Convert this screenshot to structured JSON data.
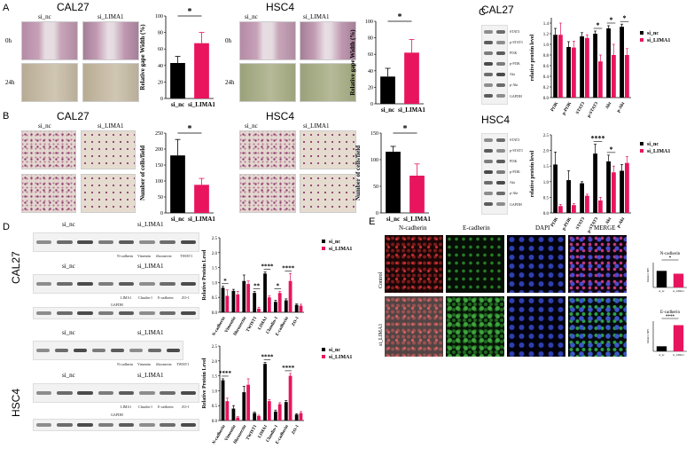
{
  "colors": {
    "si_nc": "#000000",
    "si_LIMA1": "#e8155e"
  },
  "panels": {
    "A": "A",
    "B": "B",
    "C": "C",
    "D": "D",
    "E": "E"
  },
  "panelA": {
    "left_title": "CAL27",
    "right_title": "HSC4",
    "col_nc": "si_nc",
    "col_si": "si_LIMA1",
    "row_0h": "0h",
    "row_24h": "24h"
  },
  "panelB": {
    "left_title": "CAL27",
    "right_title": "HSC4",
    "col_nc": "si_nc",
    "col_si": "si_LIMA1"
  },
  "panelC": {
    "top_title": "CAL27",
    "bottom_title": "HSC4",
    "blot_labels": [
      "STAT3",
      "p-STAT3",
      "PI3K",
      "p-PI3K",
      "Akt",
      "p-Akt",
      "GAPDH"
    ],
    "lane_labels": [
      "si_nc",
      "si_LIMA1"
    ]
  },
  "panelD": {
    "top_title": "CAL27",
    "bottom_title": "HSC4",
    "group_nc": "si_nc",
    "group_si": "si_LIMA1",
    "row1_labels": [
      "N-cadherin",
      "Vimentin",
      "fibronectin",
      "TWIST1"
    ],
    "row2_labels": [
      "LIMA1",
      "Claudin-1",
      "E-cadherin",
      "ZO-1"
    ],
    "loading": "GAPDH"
  },
  "panelE": {
    "cols": [
      "N-cadherin",
      "E-cadherin",
      "DAPI",
      "MERGE"
    ],
    "rows": [
      "Control",
      "si_LIMA1"
    ],
    "mini_top_title": "N-cadherin",
    "mini_bottom_title": "E-cadherin",
    "mini_ylabel": "Relative MFI",
    "mini_top_sig": "*",
    "mini_bottom_sig": "****",
    "mini_cats": [
      "si_nc",
      "si_LIMA1"
    ]
  },
  "chart_data": [
    {
      "id": "A1",
      "type": "bar",
      "categories": [
        "si_nc",
        "si_LIMA1"
      ],
      "values": [
        43,
        67
      ],
      "errors": [
        8,
        13
      ],
      "ylabel": "Relative gape Width (%)",
      "ylim": [
        0,
        100
      ],
      "yticks": [
        0,
        20,
        40,
        60,
        80,
        100
      ],
      "significance": "*"
    },
    {
      "id": "A2",
      "type": "bar",
      "categories": [
        "si_nc",
        "si_LIMA1"
      ],
      "values": [
        33,
        62
      ],
      "errors": [
        10,
        16
      ],
      "ylabel": "Relative gape Width (%)",
      "ylim": [
        0,
        100
      ],
      "yticks": [
        0,
        20,
        40,
        60,
        80,
        100
      ],
      "significance": "*"
    },
    {
      "id": "B1",
      "type": "bar",
      "categories": [
        "si_nc",
        "si_LIMA1"
      ],
      "values": [
        180,
        88
      ],
      "errors": [
        50,
        20
      ],
      "ylabel": "Number of cells/field",
      "ylim": [
        0,
        250
      ],
      "yticks": [
        0,
        50,
        100,
        150,
        200,
        250
      ],
      "significance": "*"
    },
    {
      "id": "B2",
      "type": "bar",
      "categories": [
        "si_nc",
        "si_LIMA1"
      ],
      "values": [
        115,
        70
      ],
      "errors": [
        10,
        22
      ],
      "ylabel": "Number of cells/field",
      "ylim": [
        0,
        150
      ],
      "yticks": [
        0,
        50,
        100,
        150
      ],
      "significance": "*"
    },
    {
      "id": "C1",
      "type": "bar",
      "categories": [
        "PI3K",
        "p-PI3K",
        "STAT3",
        "p-STAT3",
        "Akt",
        "p-Akt"
      ],
      "ylabel": "relative protein level",
      "ylim": [
        0,
        1.5
      ],
      "yticks": [
        0,
        0.2,
        0.4,
        0.6,
        0.8,
        1.0,
        1.2,
        1.4
      ],
      "series": [
        {
          "name": "si_nc",
          "values": [
            1.18,
            0.95,
            1.15,
            1.2,
            1.3,
            1.33
          ],
          "errors": [
            0.12,
            0.1,
            0.07,
            0.05,
            0.05,
            0.05
          ]
        },
        {
          "name": "si_LIMA1",
          "values": [
            1.18,
            0.94,
            1.12,
            0.68,
            0.8,
            0.8
          ],
          "errors": [
            0.22,
            0.12,
            0.06,
            0.12,
            0.2,
            0.12
          ]
        }
      ],
      "significance": [
        {
          "index": 3,
          "label": "*"
        },
        {
          "index": 4,
          "label": "*"
        },
        {
          "index": 5,
          "label": "*"
        }
      ]
    },
    {
      "id": "C2",
      "type": "bar",
      "categories": [
        "PI3K",
        "p-PI3K",
        "STAT3",
        "p-STAT3",
        "Akt",
        "p-Akt"
      ],
      "ylabel": "relative protein level",
      "ylim": [
        0,
        2.5
      ],
      "yticks": [
        0,
        0.5,
        1.0,
        1.5,
        2.0,
        2.5
      ],
      "series": [
        {
          "name": "si_nc",
          "values": [
            1.55,
            1.05,
            0.95,
            1.9,
            1.65,
            1.35
          ],
          "errors": [
            0.4,
            0.3,
            0.05,
            0.3,
            0.2,
            0.2
          ]
        },
        {
          "name": "si_LIMA1",
          "values": [
            0.22,
            0.25,
            0.55,
            0.4,
            1.3,
            1.6
          ],
          "errors": [
            0.05,
            0.05,
            0.05,
            0.1,
            0.2,
            0.2
          ]
        }
      ],
      "significance": [
        {
          "index": 3,
          "label": "****"
        },
        {
          "index": 4,
          "label": "*"
        }
      ]
    },
    {
      "id": "D1",
      "type": "bar",
      "categories": [
        "N-cadherin",
        "Vimentin",
        "fibronectin",
        "TWIST1",
        "LIMA1",
        "Claudin-1",
        "E-cadherin",
        "ZO-1"
      ],
      "ylabel": "Relative Protein Level",
      "ylim": [
        0,
        2.5
      ],
      "yticks": [
        0,
        0.5,
        1.0,
        1.5,
        2.0,
        2.5
      ],
      "series": [
        {
          "name": "si_nc",
          "values": [
            0.82,
            0.72,
            1.05,
            0.65,
            1.3,
            0.35,
            0.4,
            0.25
          ],
          "errors": [
            0.05,
            0.05,
            0.2,
            0.05,
            0.05,
            0.05,
            0.05,
            0.03
          ]
        },
        {
          "name": "si_LIMA1",
          "values": [
            0.55,
            0.6,
            0.95,
            0.12,
            0.5,
            0.65,
            1.05,
            0.22
          ],
          "errors": [
            0.2,
            0.1,
            0.1,
            0.05,
            0.05,
            0.05,
            0.25,
            0.05
          ]
        }
      ],
      "significance": [
        {
          "index": 0,
          "label": "*"
        },
        {
          "index": 3,
          "label": "**"
        },
        {
          "index": 4,
          "label": "****"
        },
        {
          "index": 5,
          "label": "*"
        },
        {
          "index": 6,
          "label": "****"
        }
      ]
    },
    {
      "id": "D2",
      "type": "bar",
      "categories": [
        "N-cadherin",
        "Vimentin",
        "fibronectin",
        "TWIST1",
        "LIMA1",
        "Claudin-1",
        "E-cadherin",
        "ZO-1"
      ],
      "ylabel": "Relative Protein Level",
      "ylim": [
        0,
        2.5
      ],
      "yticks": [
        0,
        0.5,
        1.0,
        1.5,
        2.0,
        2.5
      ],
      "series": [
        {
          "name": "si_nc",
          "values": [
            1.35,
            0.4,
            0.95,
            0.25,
            1.9,
            0.3,
            0.62,
            0.2
          ],
          "errors": [
            0.05,
            0.1,
            0.2,
            0.03,
            0.05,
            0.05,
            0.05,
            0.03
          ]
        },
        {
          "name": "si_LIMA1",
          "values": [
            0.65,
            0.1,
            1.2,
            0.15,
            0.65,
            0.55,
            1.5,
            0.25
          ],
          "errors": [
            0.1,
            0.03,
            0.2,
            0.03,
            0.05,
            0.05,
            0.08,
            0.05
          ]
        }
      ],
      "significance": [
        {
          "index": 0,
          "label": "****"
        },
        {
          "index": 4,
          "label": "****"
        },
        {
          "index": 6,
          "label": "****"
        }
      ]
    },
    {
      "id": "E1",
      "type": "bar",
      "categories": [
        "si_nc",
        "si_LIMA1"
      ],
      "values": [
        1.0,
        0.83
      ],
      "ylim": [
        0,
        1.5
      ]
    },
    {
      "id": "E2",
      "type": "bar",
      "categories": [
        "si_nc",
        "si_LIMA1"
      ],
      "values": [
        1.0,
        5.2
      ],
      "ylim": [
        0,
        6
      ]
    }
  ]
}
